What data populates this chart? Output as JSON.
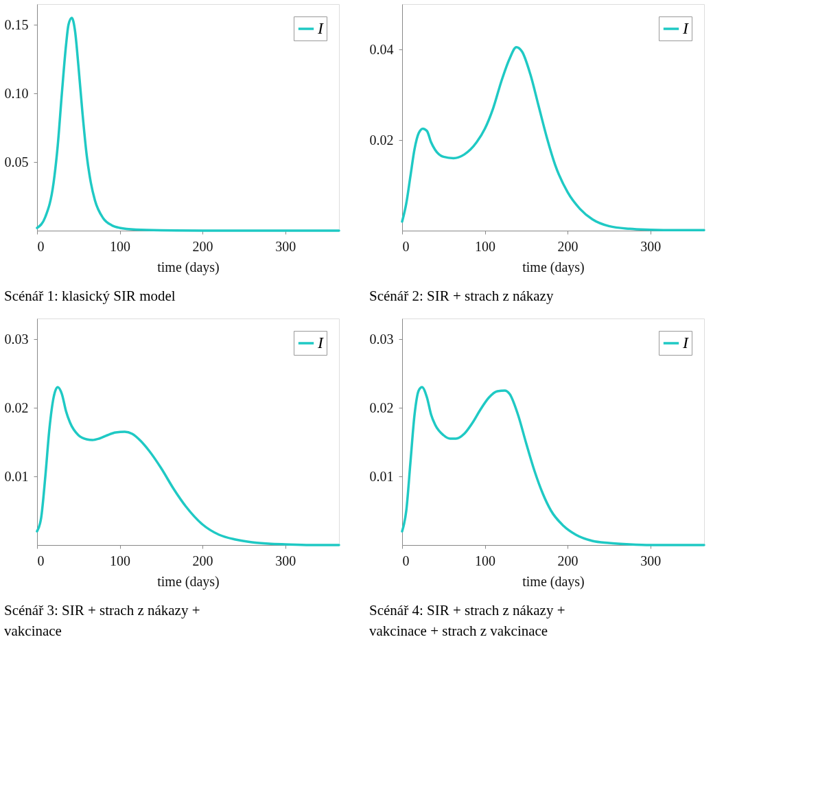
{
  "chart_data": [
    {
      "type": "line",
      "title": "Scénář 1: klasický SIR model",
      "xlabel": "time (days)",
      "xlim": [
        0,
        365
      ],
      "ylim": [
        0,
        0.165
      ],
      "xticks": [
        0,
        100,
        200,
        300
      ],
      "yticks": [
        {
          "value": 0.05,
          "label": "0.05"
        },
        {
          "value": 0.1,
          "label": "0.10"
        },
        {
          "value": 0.15,
          "label": "0.15"
        }
      ],
      "legend": "top right",
      "grid": false,
      "series": [
        {
          "name": "I",
          "color": "#1fc9c4",
          "x": [
            0,
            10,
            20,
            25,
            30,
            35,
            38,
            42,
            46,
            50,
            55,
            60,
            65,
            70,
            80,
            90,
            100,
            120,
            150,
            200,
            250,
            300,
            365
          ],
          "values": [
            0.002,
            0.01,
            0.035,
            0.062,
            0.1,
            0.135,
            0.15,
            0.155,
            0.145,
            0.12,
            0.085,
            0.055,
            0.035,
            0.022,
            0.009,
            0.004,
            0.002,
            0.0007,
            0.0002,
            0,
            0,
            0,
            0
          ]
        }
      ]
    },
    {
      "type": "line",
      "title": "Scénář 2: SIR + strach z nákazy",
      "xlabel": "time (days)",
      "xlim": [
        0,
        365
      ],
      "ylim": [
        0,
        0.05
      ],
      "xticks": [
        0,
        100,
        200,
        300
      ],
      "yticks": [
        0.02,
        0.04
      ],
      "legend": "top right",
      "grid": false,
      "series": [
        {
          "name": "I",
          "color": "#1fc9c4",
          "x": [
            0,
            5,
            10,
            15,
            20,
            25,
            30,
            35,
            40,
            50,
            62,
            75,
            90,
            100,
            110,
            120,
            130,
            138,
            145,
            155,
            165,
            175,
            185,
            200,
            215,
            230,
            250,
            275,
            300,
            330,
            365
          ],
          "values": [
            0.002,
            0.006,
            0.012,
            0.018,
            0.0215,
            0.0225,
            0.022,
            0.0195,
            0.0178,
            0.0163,
            0.016,
            0.0168,
            0.0195,
            0.0225,
            0.027,
            0.033,
            0.038,
            0.0405,
            0.0395,
            0.0345,
            0.0275,
            0.0205,
            0.0145,
            0.0085,
            0.0048,
            0.0025,
            0.001,
            0.0004,
            0.0002,
            0.0001,
            0.0001
          ]
        }
      ]
    },
    {
      "type": "line",
      "title": "Scénář 3: SIR + strach z nákazy + vakcinace",
      "xlabel": "time (days)",
      "xlim": [
        0,
        365
      ],
      "ylim": [
        0,
        0.033
      ],
      "xticks": [
        0,
        100,
        200,
        300
      ],
      "yticks": [
        0.01,
        0.02,
        0.03
      ],
      "legend": "top right",
      "grid": false,
      "series": [
        {
          "name": "I",
          "color": "#1fc9c4",
          "x": [
            0,
            5,
            10,
            15,
            20,
            25,
            30,
            35,
            40,
            50,
            60,
            67,
            75,
            85,
            95,
            106,
            115,
            125,
            135,
            150,
            165,
            180,
            200,
            220,
            240,
            260,
            280,
            300,
            330,
            365
          ],
          "values": [
            0.002,
            0.004,
            0.01,
            0.017,
            0.0215,
            0.023,
            0.022,
            0.0195,
            0.0178,
            0.016,
            0.0154,
            0.0153,
            0.0155,
            0.016,
            0.0164,
            0.0165,
            0.0162,
            0.0152,
            0.0138,
            0.0112,
            0.0082,
            0.0056,
            0.003,
            0.0015,
            0.0008,
            0.0004,
            0.0002,
            0.0001,
            0,
            0
          ]
        }
      ]
    },
    {
      "type": "line",
      "title": "Scénář 4: SIR + strach z nákazy + vakcinace + strach z vakcinace",
      "xlabel": "time (days)",
      "xlim": [
        0,
        365
      ],
      "ylim": [
        0,
        0.033
      ],
      "xticks": [
        0,
        100,
        200,
        300
      ],
      "yticks": [
        0.01,
        0.02,
        0.03
      ],
      "legend": "top right",
      "grid": false,
      "series": [
        {
          "name": "I",
          "color": "#1fc9c4",
          "x": [
            0,
            5,
            10,
            15,
            20,
            24,
            30,
            35,
            40,
            50,
            58,
            65,
            75,
            85,
            95,
            105,
            115,
            124,
            130,
            140,
            150,
            160,
            170,
            180,
            195,
            210,
            230,
            250,
            275,
            300,
            330,
            365
          ],
          "values": [
            0.002,
            0.005,
            0.012,
            0.019,
            0.0225,
            0.023,
            0.0215,
            0.019,
            0.0175,
            0.016,
            0.0155,
            0.0155,
            0.0162,
            0.0178,
            0.0198,
            0.0215,
            0.0224,
            0.0225,
            0.022,
            0.019,
            0.0148,
            0.0108,
            0.0075,
            0.005,
            0.0028,
            0.0015,
            0.0006,
            0.0003,
            0.0001,
            0,
            0,
            0
          ]
        }
      ]
    }
  ]
}
